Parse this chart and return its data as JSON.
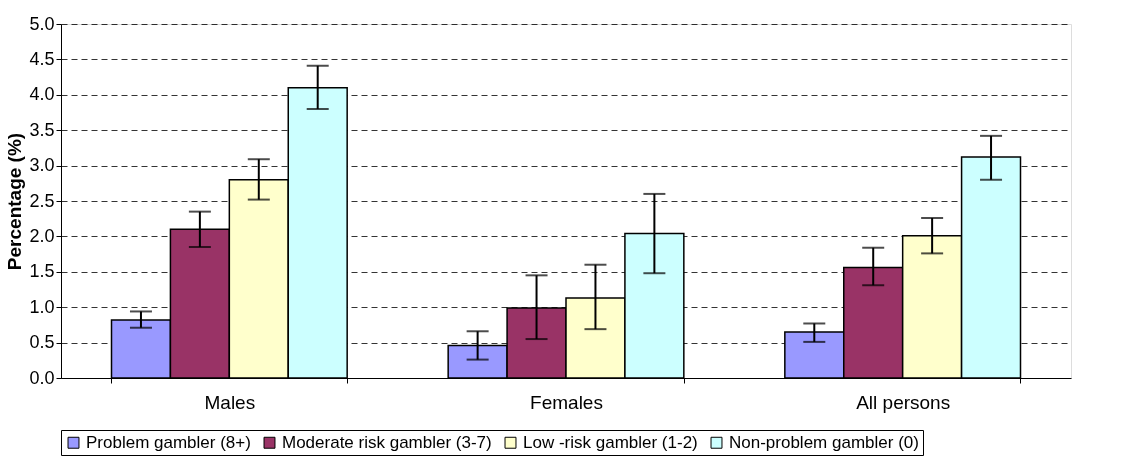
{
  "chart_data": {
    "type": "bar",
    "ylabel": "Percentage (%)",
    "categories": [
      "Males",
      "Females",
      "All persons"
    ],
    "series": [
      {
        "name": "Problem gambler (8+)",
        "color": "#9999ff",
        "values": [
          0.82,
          0.46,
          0.65
        ],
        "errors": [
          [
            0.71,
            0.94
          ],
          [
            0.26,
            0.66
          ],
          [
            0.51,
            0.77
          ]
        ]
      },
      {
        "name": "Moderate risk gambler (3-7)",
        "color": "#993366",
        "values": [
          2.1,
          0.99,
          1.56
        ],
        "errors": [
          [
            1.85,
            2.35
          ],
          [
            0.55,
            1.45
          ],
          [
            1.31,
            1.84
          ]
        ]
      },
      {
        "name": "Low -risk gambler (1-2)",
        "color": "#ffffcc",
        "values": [
          2.8,
          1.13,
          2.01
        ],
        "errors": [
          [
            2.52,
            3.09
          ],
          [
            0.69,
            1.6
          ],
          [
            1.76,
            2.26
          ]
        ]
      },
      {
        "name": "Non-problem gambler (0)",
        "color": "#ccffff",
        "values": [
          4.1,
          2.04,
          3.12
        ],
        "errors": [
          [
            3.8,
            4.41
          ],
          [
            1.48,
            2.6
          ],
          [
            2.8,
            3.42
          ]
        ]
      }
    ],
    "ylim": [
      0,
      5
    ],
    "yticks": [
      {
        "value": 0,
        "label": "0.0"
      },
      {
        "value": 0.5,
        "label": "0.5"
      },
      {
        "value": 1,
        "label": "1.0"
      },
      {
        "value": 1.5,
        "label": "1.5"
      },
      {
        "value": 2,
        "label": "2.0"
      },
      {
        "value": 2.5,
        "label": "2.5"
      },
      {
        "value": 3,
        "label": "3.0"
      },
      {
        "value": 3.5,
        "label": "3.5"
      },
      {
        "value": 4,
        "label": "4.0"
      },
      {
        "value": 4.5,
        "label": "4.5"
      },
      {
        "value": 5,
        "label": "5.0"
      }
    ],
    "grid": "y",
    "legend": "bottom"
  }
}
